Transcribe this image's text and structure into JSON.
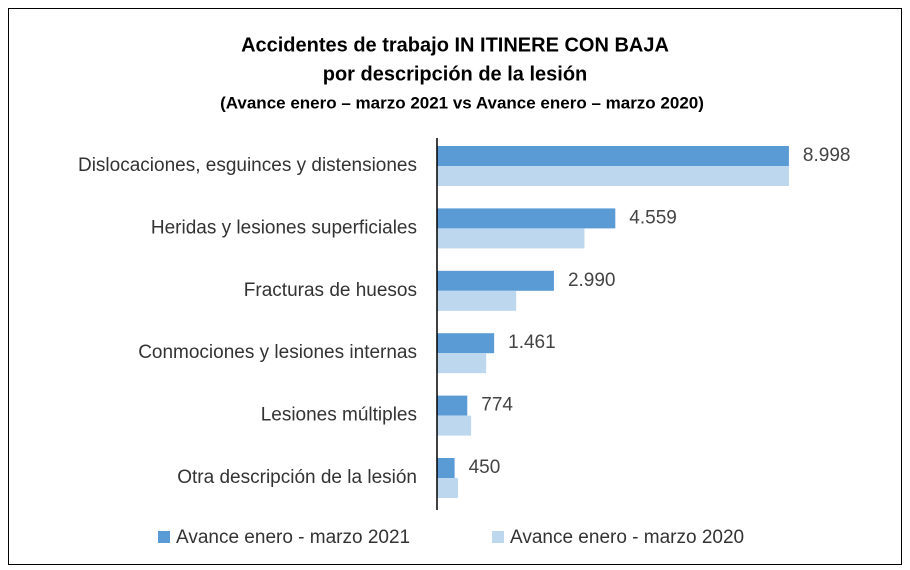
{
  "chart_data": {
    "type": "bar",
    "orientation": "horizontal",
    "title": "Accidentes de trabajo IN ITINERE CON BAJA",
    "subtitle": "por descripción de la lesión",
    "subtitle2": "(Avance enero – marzo 2021 vs Avance enero – marzo 2020)",
    "categories": [
      "Dislocaciones, esguinces y distensiones",
      "Heridas y lesiones superficiales",
      "Fracturas de huesos",
      "Conmociones y lesiones internas",
      "Lesiones múltiples",
      "Otra descripción de la lesión"
    ],
    "series": [
      {
        "name": "Avance enero - marzo 2021",
        "color": "#5b9bd5",
        "values": [
          8998,
          4559,
          2990,
          1461,
          774,
          450
        ],
        "value_labels": [
          "8.998",
          "4.559",
          "2.990",
          "1.461",
          "774",
          "450"
        ]
      },
      {
        "name": "Avance enero - marzo 2020",
        "color": "#bdd7ee",
        "values": [
          9000,
          3770,
          2025,
          1256,
          872,
          538
        ]
      }
    ],
    "legend": "bottom"
  }
}
